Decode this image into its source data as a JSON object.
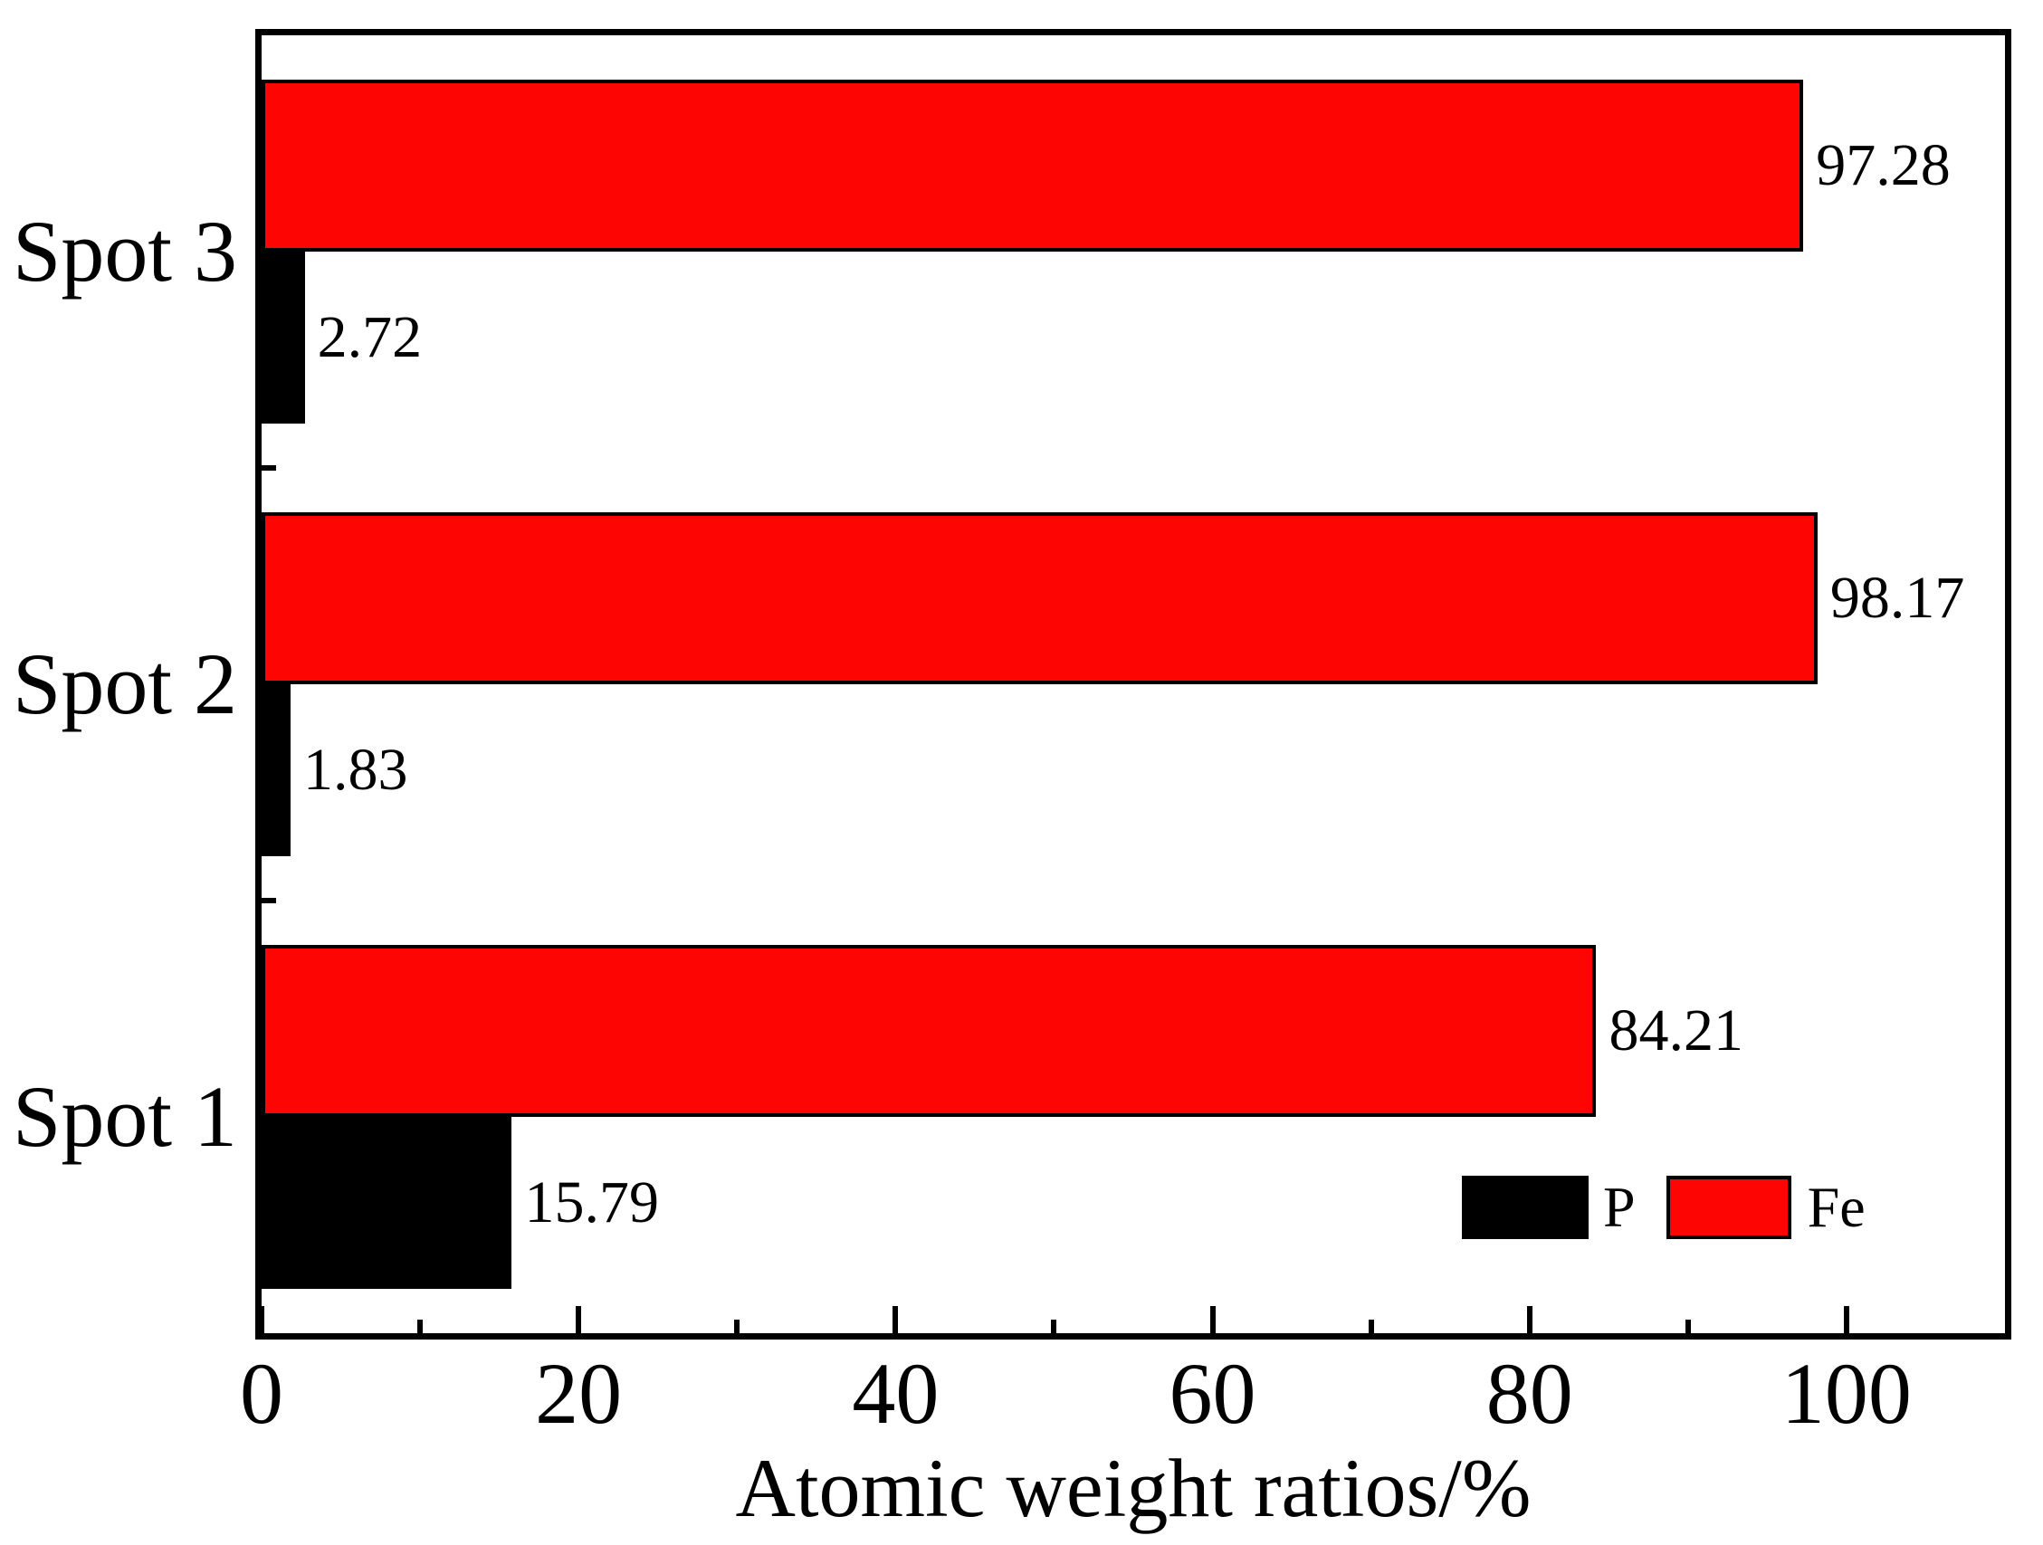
{
  "chart_data": {
    "type": "bar",
    "orientation": "horizontal",
    "title": "",
    "xlabel": "Atomic weight ratios/%",
    "ylabel": "",
    "categories": [
      "Spot 3",
      "Spot 2",
      "Spot 1"
    ],
    "series": [
      {
        "name": "Fe",
        "color": "#fd0503",
        "values": [
          97.28,
          98.17,
          84.21
        ]
      },
      {
        "name": "P",
        "color": "#000000",
        "values": [
          2.72,
          1.83,
          15.79
        ]
      }
    ],
    "value_labels": {
      "Fe": [
        "97.28",
        "98.17",
        "84.21"
      ],
      "P": [
        "2.72",
        "1.83",
        "15.79"
      ]
    },
    "xlim": [
      0,
      110
    ],
    "x_major_ticks": [
      0,
      20,
      40,
      60,
      80,
      100
    ],
    "x_minor_ticks": [
      10,
      30,
      50,
      70,
      90
    ],
    "grid": false,
    "legend": {
      "position": "lower-right-inside",
      "items": [
        {
          "label": "P",
          "color": "#000000"
        },
        {
          "label": "Fe",
          "color": "#fd0503"
        }
      ]
    }
  },
  "colors": {
    "background": "#ffffff",
    "axis": "#000000",
    "text": "#000000",
    "bar_fe": "#fd0503",
    "bar_p": "#000000"
  }
}
